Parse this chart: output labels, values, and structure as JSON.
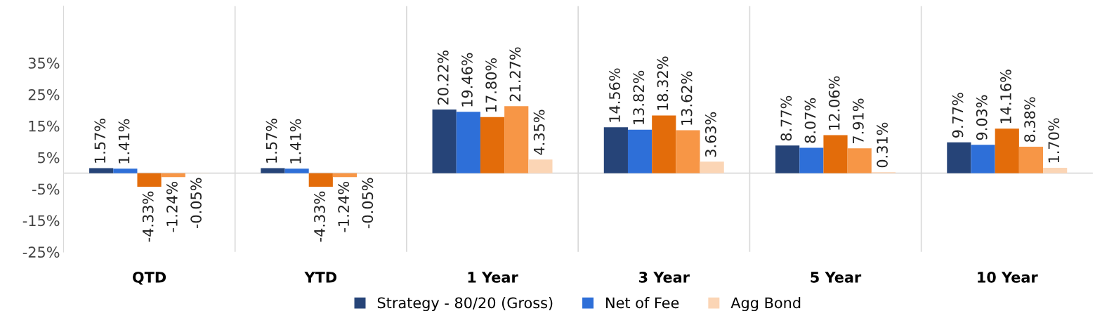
{
  "chart_data": {
    "type": "bar",
    "categories": [
      "QTD",
      "YTD",
      "1 Year",
      "3 Year",
      "5 Year",
      "10 Year"
    ],
    "series": [
      {
        "name": "Strategy - 80/20 (Gross)",
        "color": "#264478",
        "values": [
          1.57,
          1.57,
          20.22,
          14.56,
          8.77,
          9.77
        ],
        "value_labels": [
          "1.57%",
          "1.57%",
          "20.22%",
          "14.56%",
          "8.77%",
          "9.77%"
        ]
      },
      {
        "name": "Net of Fee",
        "color": "#2e6fd8",
        "values": [
          1.41,
          1.41,
          19.46,
          13.82,
          8.07,
          9.03
        ],
        "value_labels": [
          "1.41%",
          "1.41%",
          "19.46%",
          "13.82%",
          "8.07%",
          "9.03%"
        ]
      },
      {
        "color": "#e36c0a",
        "values": [
          -4.33,
          -4.33,
          17.8,
          18.32,
          12.06,
          14.16
        ],
        "value_labels": [
          "-4.33%",
          "-4.33%",
          "17.80%",
          "18.32%",
          "12.06%",
          "14.16%"
        ]
      },
      {
        "color": "#f79646",
        "values": [
          -1.24,
          -1.24,
          21.27,
          13.62,
          7.91,
          8.38
        ],
        "value_labels": [
          "-1.24%",
          "-1.24%",
          "21.27%",
          "13.62%",
          "7.91%",
          "8.38%"
        ]
      },
      {
        "name": "Agg Bond",
        "color": "#fbd5b5",
        "values": [
          -0.05,
          -0.05,
          4.35,
          3.63,
          0.31,
          1.7
        ],
        "value_labels": [
          "-0.05%",
          "-0.05%",
          "4.35%",
          "3.63%",
          "0.31%",
          "1.70%"
        ]
      }
    ],
    "ylim": [
      -25,
      53
    ],
    "yticks": [
      {
        "value": -25,
        "label": "-25%"
      },
      {
        "value": -15,
        "label": "-15%"
      },
      {
        "value": -5,
        "label": "-5%"
      },
      {
        "value": 5,
        "label": "5%"
      },
      {
        "value": 15,
        "label": "15%"
      },
      {
        "value": 25,
        "label": "25%"
      },
      {
        "value": 35,
        "label": "35%"
      }
    ],
    "grid": "x",
    "legend": "bottom"
  }
}
